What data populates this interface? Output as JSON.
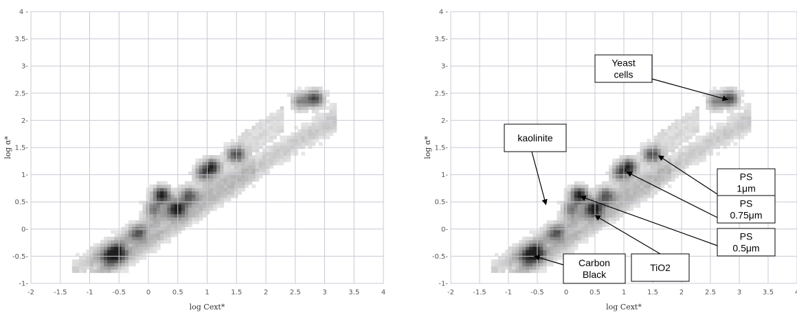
{
  "chart_data": [
    {
      "type": "heatmap",
      "xlabel": "log Cext*",
      "ylabel": "log α*",
      "xlim": [
        -2,
        4
      ],
      "ylim": [
        -1,
        4
      ],
      "xticks": [
        "-2",
        "-1.5",
        "-1",
        "-0.5",
        "0",
        "0.5",
        "1",
        "1.5",
        "2",
        "2.5",
        "3",
        "3.5",
        "4"
      ],
      "yticks": [
        "-1",
        "-0.5",
        "0",
        "0.5",
        "1",
        "1.5",
        "2",
        "2.5",
        "3",
        "3.5",
        "4"
      ],
      "grid": true,
      "density_clusters": [
        {
          "x": -0.7,
          "y": -0.55,
          "intensity": 0.6
        },
        {
          "x": -0.55,
          "y": -0.45,
          "intensity": 0.85
        },
        {
          "x": -0.2,
          "y": -0.1,
          "intensity": 0.5
        },
        {
          "x": 0.05,
          "y": 0.35,
          "intensity": 0.55
        },
        {
          "x": 0.2,
          "y": 0.6,
          "intensity": 1.0
        },
        {
          "x": 0.45,
          "y": 0.35,
          "intensity": 0.85
        },
        {
          "x": 0.65,
          "y": 0.6,
          "intensity": 0.6
        },
        {
          "x": 1.05,
          "y": 1.12,
          "intensity": 0.85
        },
        {
          "x": 0.9,
          "y": 1.0,
          "intensity": 0.6
        },
        {
          "x": 1.45,
          "y": 1.35,
          "intensity": 0.75
        },
        {
          "x": 2.8,
          "y": 2.38,
          "intensity": 0.8
        },
        {
          "x": 2.55,
          "y": 2.32,
          "intensity": 0.5
        }
      ]
    },
    {
      "type": "heatmap",
      "xlabel": "log Cext*",
      "ylabel": "log α*",
      "xlim": [
        -2,
        4
      ],
      "ylim": [
        -1,
        4
      ],
      "xticks": [
        "-2",
        "-1.5",
        "-1",
        "-0.5",
        "0",
        "0.5",
        "1",
        "1.5",
        "2",
        "2.5",
        "3",
        "3.5",
        "4"
      ],
      "yticks": [
        "-1",
        "-0.5",
        "0",
        "0.5",
        "1",
        "1.5",
        "2",
        "2.5",
        "3",
        "3.5",
        "4"
      ],
      "grid": true,
      "density_clusters": [
        {
          "x": -0.7,
          "y": -0.55,
          "intensity": 0.6
        },
        {
          "x": -0.55,
          "y": -0.45,
          "intensity": 0.85
        },
        {
          "x": -0.2,
          "y": -0.1,
          "intensity": 0.5
        },
        {
          "x": 0.05,
          "y": 0.35,
          "intensity": 0.55
        },
        {
          "x": 0.2,
          "y": 0.6,
          "intensity": 1.0
        },
        {
          "x": 0.45,
          "y": 0.35,
          "intensity": 0.85
        },
        {
          "x": 0.65,
          "y": 0.6,
          "intensity": 0.6
        },
        {
          "x": 1.05,
          "y": 1.12,
          "intensity": 0.85
        },
        {
          "x": 0.9,
          "y": 1.0,
          "intensity": 0.6
        },
        {
          "x": 1.45,
          "y": 1.35,
          "intensity": 0.75
        },
        {
          "x": 2.8,
          "y": 2.38,
          "intensity": 0.8
        },
        {
          "x": 2.55,
          "y": 2.32,
          "intensity": 0.5
        }
      ],
      "annotations": [
        {
          "lines": [
            "Yeast",
            "cells"
          ],
          "target": [
            2.8,
            2.38
          ]
        },
        {
          "lines": [
            "kaolinite"
          ],
          "target": [
            -0.35,
            0.45
          ]
        },
        {
          "lines": [
            "PS",
            "1μm"
          ],
          "target": [
            1.6,
            1.35
          ]
        },
        {
          "lines": [
            "PS",
            "0.75μm"
          ],
          "target": [
            1.05,
            1.05
          ]
        },
        {
          "lines": [
            "PS",
            "0.5μm"
          ],
          "target": [
            0.25,
            0.6
          ]
        },
        {
          "lines": [
            "TiO2"
          ],
          "target": [
            0.5,
            0.25
          ]
        },
        {
          "lines": [
            "Carbon",
            "Black"
          ],
          "target": [
            -0.55,
            -0.5
          ]
        }
      ]
    }
  ]
}
